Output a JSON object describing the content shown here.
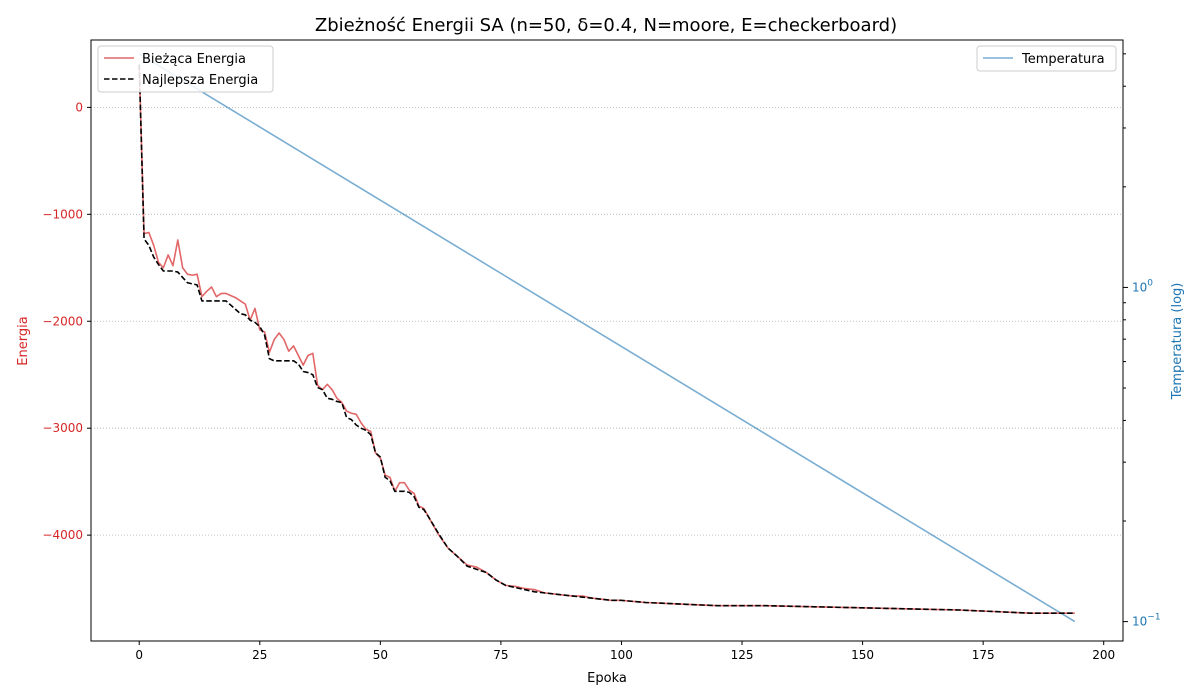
{
  "chart_data": {
    "type": "line",
    "title": "Zbieżność Energii SA (n=50, δ=0.4, N=moore, E=checkerboard)",
    "xlabel": "Epoka",
    "ylabel_left": "Energia",
    "ylabel_right": "Temperatura (log)",
    "xlim": [
      -10,
      204
    ],
    "ylim_left": [
      -4990,
      630
    ],
    "ylim_right_log": [
      0.0875,
      5.5
    ],
    "x_ticks": [
      0,
      25,
      50,
      75,
      100,
      125,
      150,
      175,
      200
    ],
    "y_left_ticks": [
      0,
      -1000,
      -2000,
      -3000,
      -4000
    ],
    "y_left_tick_labels": [
      "0",
      "−1000",
      "−2000",
      "−3000",
      "−4000"
    ],
    "y_right_ticks": [
      1,
      0.1
    ],
    "y_right_major_labels": [
      {
        "base": "10",
        "exp": "0"
      },
      {
        "base": "10",
        "exp": "−1"
      }
    ],
    "y_right_minor_ticks": [
      0.2,
      0.3,
      0.4,
      0.5,
      0.6,
      0.7,
      0.8,
      0.9,
      2,
      3,
      4,
      5
    ],
    "grid": "horizontal dotted (left axis)",
    "colors": {
      "current": "#d62728",
      "best": "#000000",
      "temperature": "#1f77b4",
      "left_axis_text": "#d62728",
      "right_axis_text": "#1f77b4"
    },
    "legend_left": {
      "placement": "top-left",
      "entries": [
        {
          "label": "Bieżąca Energia",
          "style": "solid",
          "color_key": "current"
        },
        {
          "label": "Najlepsza Energia",
          "style": "dashed",
          "color_key": "best"
        }
      ]
    },
    "legend_right": {
      "placement": "top-right",
      "entries": [
        {
          "label": "Temperatura",
          "style": "solid",
          "color_key": "temperature"
        }
      ]
    },
    "series": [
      {
        "name": "Bieżąca Energia",
        "axis": "left",
        "x": [
          0,
          1,
          2,
          3,
          4,
          5,
          6,
          7,
          8,
          9,
          10,
          11,
          12,
          13,
          14,
          15,
          16,
          17,
          18,
          19,
          20,
          21,
          22,
          23,
          24,
          25,
          26,
          27,
          28,
          29,
          30,
          31,
          32,
          33,
          34,
          35,
          36,
          37,
          38,
          39,
          40,
          41,
          42,
          43,
          44,
          45,
          46,
          47,
          48,
          49,
          50,
          51,
          52,
          53,
          54,
          55,
          56,
          57,
          58,
          59,
          60,
          62,
          64,
          66,
          68,
          70,
          72,
          74,
          76,
          78,
          80,
          82,
          84,
          86,
          88,
          90,
          92,
          94,
          96,
          98,
          100,
          105,
          110,
          115,
          120,
          130,
          140,
          150,
          160,
          170,
          180,
          185,
          190,
          194
        ],
        "y": [
          400,
          -1180,
          -1170,
          -1290,
          -1450,
          -1500,
          -1380,
          -1480,
          -1240,
          -1500,
          -1560,
          -1570,
          -1560,
          -1770,
          -1720,
          -1680,
          -1770,
          -1740,
          -1740,
          -1760,
          -1780,
          -1810,
          -1840,
          -1990,
          -1880,
          -2080,
          -2100,
          -2290,
          -2170,
          -2110,
          -2170,
          -2280,
          -2230,
          -2320,
          -2410,
          -2320,
          -2300,
          -2600,
          -2640,
          -2590,
          -2640,
          -2720,
          -2760,
          -2840,
          -2860,
          -2870,
          -2950,
          -3010,
          -3030,
          -3230,
          -3280,
          -3440,
          -3460,
          -3590,
          -3510,
          -3510,
          -3580,
          -3610,
          -3730,
          -3750,
          -3830,
          -3990,
          -4120,
          -4200,
          -4280,
          -4300,
          -4350,
          -4420,
          -4470,
          -4480,
          -4500,
          -4510,
          -4540,
          -4550,
          -4560,
          -4570,
          -4570,
          -4590,
          -4600,
          -4610,
          -4610,
          -4630,
          -4640,
          -4650,
          -4660,
          -4660,
          -4670,
          -4680,
          -4690,
          -4700,
          -4720,
          -4730,
          -4730,
          -4730
        ]
      },
      {
        "name": "Najlepsza Energia",
        "axis": "left",
        "x": [
          0,
          1,
          2,
          3,
          4,
          5,
          6,
          7,
          8,
          9,
          10,
          11,
          12,
          13,
          14,
          15,
          16,
          17,
          18,
          19,
          20,
          21,
          22,
          23,
          24,
          25,
          26,
          27,
          28,
          29,
          30,
          31,
          32,
          33,
          34,
          35,
          36,
          37,
          38,
          39,
          40,
          41,
          42,
          43,
          44,
          45,
          46,
          47,
          48,
          49,
          50,
          51,
          52,
          53,
          54,
          55,
          56,
          57,
          58,
          59,
          60,
          62,
          64,
          66,
          68,
          70,
          72,
          74,
          76,
          78,
          80,
          82,
          84,
          86,
          88,
          90,
          92,
          94,
          96,
          98,
          100,
          105,
          110,
          115,
          120,
          130,
          140,
          150,
          160,
          170,
          180,
          185,
          190,
          194
        ],
        "y": [
          400,
          -1230,
          -1290,
          -1400,
          -1470,
          -1530,
          -1530,
          -1530,
          -1540,
          -1590,
          -1640,
          -1650,
          -1660,
          -1810,
          -1810,
          -1810,
          -1810,
          -1810,
          -1810,
          -1850,
          -1890,
          -1930,
          -1940,
          -1990,
          -2010,
          -2050,
          -2130,
          -2350,
          -2370,
          -2370,
          -2370,
          -2370,
          -2370,
          -2400,
          -2470,
          -2480,
          -2500,
          -2620,
          -2640,
          -2720,
          -2730,
          -2750,
          -2760,
          -2900,
          -2920,
          -2970,
          -3000,
          -3020,
          -3060,
          -3230,
          -3270,
          -3460,
          -3490,
          -3590,
          -3590,
          -3590,
          -3600,
          -3640,
          -3740,
          -3760,
          -3830,
          -3980,
          -4120,
          -4200,
          -4290,
          -4320,
          -4350,
          -4420,
          -4470,
          -4490,
          -4510,
          -4530,
          -4540,
          -4550,
          -4560,
          -4570,
          -4580,
          -4590,
          -4600,
          -4610,
          -4610,
          -4630,
          -4640,
          -4650,
          -4660,
          -4660,
          -4670,
          -4680,
          -4690,
          -4700,
          -4720,
          -4730,
          -4730,
          -4730
        ]
      },
      {
        "name": "Temperatura",
        "axis": "right",
        "scale": "log",
        "x": [
          0,
          194
        ],
        "y": [
          5.0,
          0.1
        ]
      }
    ]
  }
}
